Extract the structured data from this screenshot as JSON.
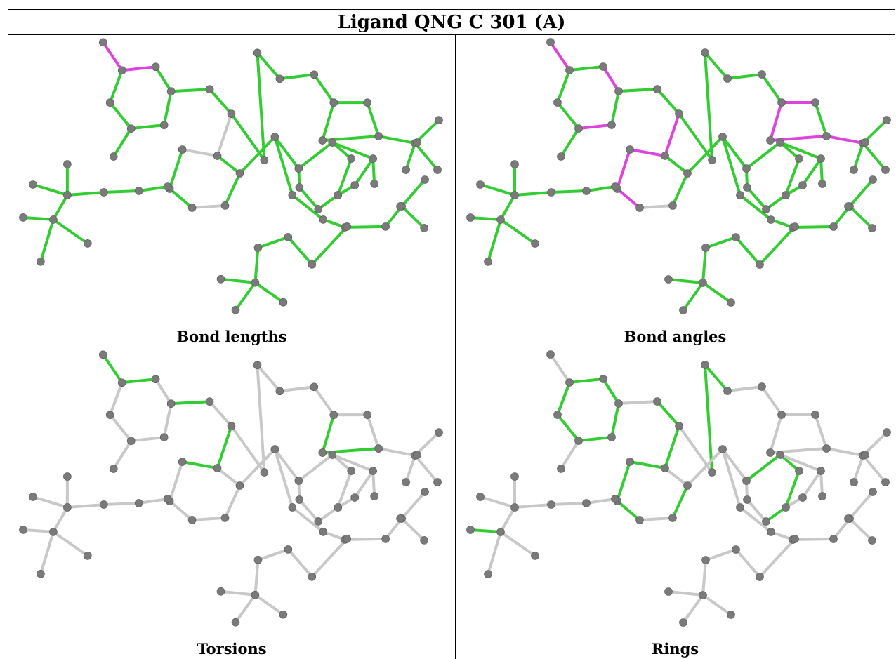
{
  "title": "Ligand QNG C 301 (A)",
  "colors": {
    "good": "#33cc33",
    "outlier": "#dd44dd",
    "neutral": "#c8c8c8",
    "atom": "#7a7a7a"
  },
  "panels": [
    {
      "caption": "Bond lengths",
      "default_bond": "good",
      "outliers": [
        "ae",
        "yz",
        "bc",
        "hz",
        "dy",
        "xo",
        "ad",
        "C",
        "Q",
        "S",
        "W",
        "X",
        "Y",
        "Z",
        "ab",
        "ac",
        "ag"
      ],
      "neutral": [
        "tx",
        "mn",
        "ij",
        "jk",
        "mq",
        "eg"
      ]
    },
    {
      "caption": "Bond angles",
      "default_bond": "good",
      "outliers": [
        "ae",
        "yz",
        "ya",
        "vx",
        "wv",
        "sv",
        "tu",
        "tw",
        "tx",
        "ij",
        "jk",
        "kl",
        "lm",
        "mq",
        "qf",
        "ij",
        "cd",
        "co",
        "ad",
        "A",
        "B",
        "ah",
        "ag",
        "R",
        "T",
        "ab",
        "ac",
        "Q",
        "S",
        "X",
        "Y",
        "Z",
        "ef",
        "kr"
      ],
      "neutral": [
        "mn",
        "eg"
      ]
    },
    {
      "caption": "Torsions",
      "default_bond": "neutral",
      "good": [
        "bc",
        "hz",
        "hd",
        "jk",
        "ij",
        "wv",
        "tw",
        "sv",
        "yz",
        "ab",
        "E",
        "F"
      ],
      "outliers": [
        "tx",
        "ac",
        "ag",
        "W",
        "ae",
        "C"
      ]
    },
    {
      "caption": "Rings",
      "default_bond": "neutral",
      "good": [
        "bc",
        "cd",
        "de",
        "ef",
        "fg",
        "gb",
        "hi",
        "ij",
        "jk",
        "kl",
        "lm",
        "mh",
        "no",
        "op",
        "pq",
        "qr",
        "rn",
        "IJ",
        "JK",
        "KL",
        "LM",
        "MI",
        "NO",
        "OP",
        "PQ",
        "QR",
        "RN"
      ]
    }
  ]
}
